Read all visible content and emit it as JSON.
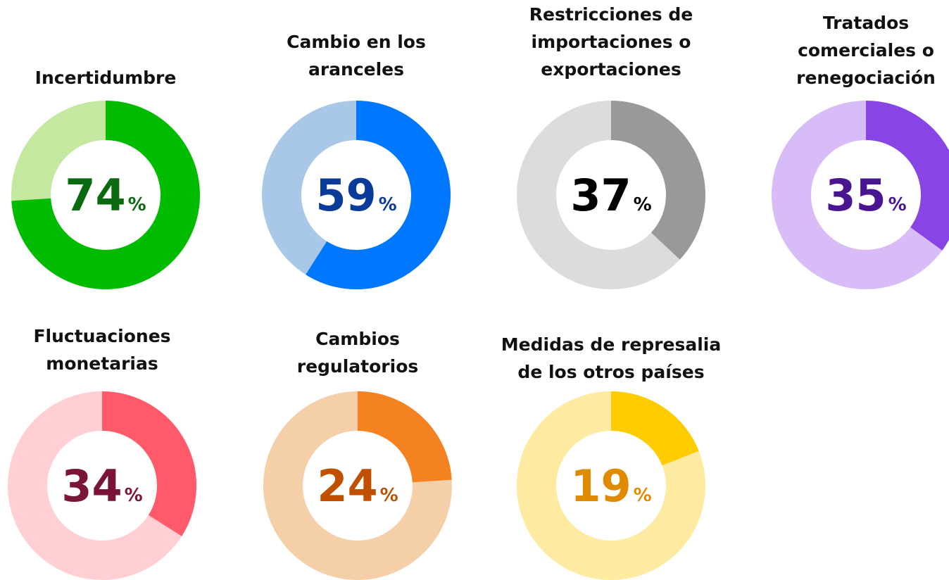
{
  "chart_data": [
    {
      "type": "donut",
      "title": [
        "Incertidumbre"
      ],
      "values": [
        74
      ],
      "unit": "%",
      "ylim": [
        0,
        100
      ],
      "color": "#00bb00",
      "track_color": "#c5e8a0",
      "label_color": "#0a6a10"
    },
    {
      "type": "donut",
      "title": [
        "Cambio en los",
        "aranceles"
      ],
      "values": [
        59
      ],
      "unit": "%",
      "ylim": [
        0,
        100
      ],
      "color": "#0077ff",
      "track_color": "#a9c8e8",
      "label_color": "#0a3a9a"
    },
    {
      "type": "donut",
      "title": [
        "Restricciones de",
        "importaciones o",
        "exportaciones"
      ],
      "values": [
        37
      ],
      "unit": "%",
      "ylim": [
        0,
        100
      ],
      "color": "#999999",
      "track_color": "#dcdcdc",
      "label_color": "#000000"
    },
    {
      "type": "donut",
      "title": [
        "Tratados",
        "comerciales o",
        "renegociación"
      ],
      "values": [
        35
      ],
      "unit": "%",
      "ylim": [
        0,
        100
      ],
      "color": "#8844e4",
      "track_color": "#d8bcf8",
      "label_color": "#4a1590"
    },
    {
      "type": "donut",
      "title": [
        "Fluctuaciones",
        "monetarias"
      ],
      "values": [
        34
      ],
      "unit": "%",
      "ylim": [
        0,
        100
      ],
      "color": "#ff5a6a",
      "track_color": "#ffcfd4",
      "label_color": "#7a1535"
    },
    {
      "type": "donut",
      "title": [
        "Cambios",
        "regulatorios"
      ],
      "values": [
        24
      ],
      "unit": "%",
      "ylim": [
        0,
        100
      ],
      "color": "#f58220",
      "track_color": "#f5cfa8",
      "label_color": "#c05000"
    },
    {
      "type": "donut",
      "title": [
        "Medidas de represalia",
        "de los otros países"
      ],
      "values": [
        19
      ],
      "unit": "%",
      "ylim": [
        0,
        100
      ],
      "color": "#ffcc00",
      "track_color": "#feeaa0",
      "label_color": "#e08a00"
    }
  ]
}
